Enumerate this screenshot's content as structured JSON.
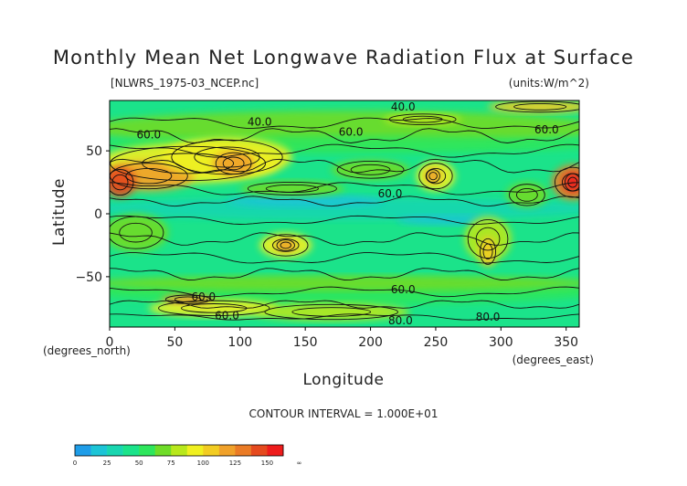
{
  "chart_data": {
    "type": "heatmap",
    "title": "Monthly Mean Net Longwave Radiation Flux at Surface",
    "subtitle_left": "[NLWRS_1975-03_NCEP.nc]",
    "subtitle_right": "(units:W/m^2)",
    "xlabel": "Longitude",
    "ylabel": "Latitude",
    "x_unit_label": "(degrees_east)",
    "y_unit_label": "(degrees_north)",
    "footer": "CONTOUR INTERVAL = 1.000E+01",
    "xlim": [
      0,
      360
    ],
    "ylim": [
      -90,
      90
    ],
    "x_ticks": [
      {
        "value": 0,
        "label": "0"
      },
      {
        "value": 50,
        "label": "50"
      },
      {
        "value": 100,
        "label": "100"
      },
      {
        "value": 150,
        "label": "150"
      },
      {
        "value": 200,
        "label": "200"
      },
      {
        "value": 250,
        "label": "250"
      },
      {
        "value": 300,
        "label": "300"
      },
      {
        "value": 350,
        "label": "350"
      }
    ],
    "y_ticks": [
      {
        "value": 50,
        "label": "50"
      },
      {
        "value": 0,
        "label": "0"
      },
      {
        "value": -50,
        "label": "−50"
      }
    ],
    "contour_labels": [
      {
        "value": 40,
        "lon": 225,
        "lat": 82,
        "text": "40.0"
      },
      {
        "value": 40,
        "lon": 115,
        "lat": 70,
        "text": "40.0"
      },
      {
        "value": 60,
        "lon": 30,
        "lat": 60,
        "text": "60.0"
      },
      {
        "value": 60,
        "lon": 185,
        "lat": 62,
        "text": "60.0"
      },
      {
        "value": 60,
        "lon": 335,
        "lat": 64,
        "text": "60.0"
      },
      {
        "value": 60,
        "lon": 215,
        "lat": 13,
        "text": "60.0"
      },
      {
        "value": 60,
        "lon": 225,
        "lat": -63,
        "text": "60.0"
      },
      {
        "value": 60,
        "lon": 72,
        "lat": -69,
        "text": "60.0"
      },
      {
        "value": 60,
        "lon": 90,
        "lat": -84,
        "text": "60.0"
      },
      {
        "value": 80,
        "lon": 223,
        "lat": -88,
        "text": "80.0"
      },
      {
        "value": 80,
        "lon": 290,
        "lat": -85,
        "text": "80.0"
      }
    ],
    "colorbar": {
      "levels": [
        0,
        12.5,
        25,
        37.5,
        50,
        62.5,
        75,
        87.5,
        100,
        112.5,
        125,
        137.5,
        150,
        162.5
      ],
      "tick_labels": [
        "0",
        "25",
        "50",
        "75",
        "100",
        "125",
        "150",
        "∞"
      ],
      "colors": [
        "#1f9de8",
        "#1cc4d6",
        "#19d6b0",
        "#1be38a",
        "#2ee65c",
        "#6fdc28",
        "#b8e81c",
        "#f0f020",
        "#f2cc22",
        "#f0a12a",
        "#ea7b26",
        "#e54a1e",
        "#ee1c1c"
      ]
    }
  }
}
